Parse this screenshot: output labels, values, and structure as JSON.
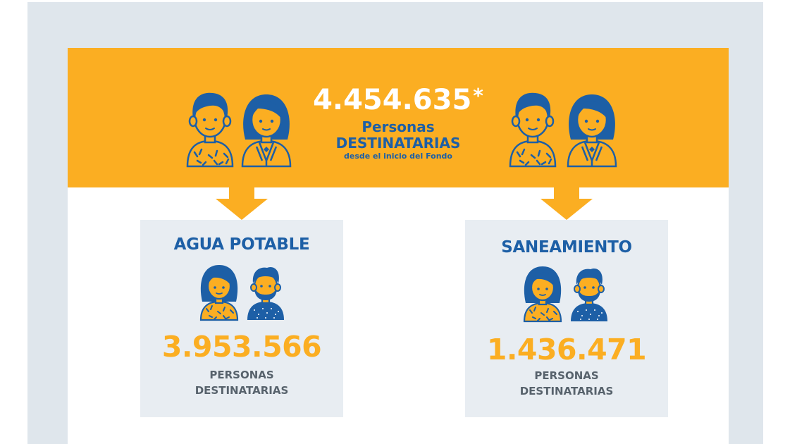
{
  "banner": {
    "total": "4.454.635",
    "asterisk": "*",
    "line1": "Personas",
    "line2": "DESTINATARIAS",
    "line3": "desde el inicio del Fondo"
  },
  "cards": [
    {
      "title": "AGUA POTABLE",
      "number": "3.953.566",
      "caption_line1": "PERSONAS",
      "caption_line2": "DESTINATARIAS"
    },
    {
      "title": "SANEAMIENTO",
      "number": "1.436.471",
      "caption_line1": "PERSONAS",
      "caption_line2": "DESTINATARIAS"
    }
  ],
  "colors": {
    "accent_orange": "#fbae22",
    "brand_blue": "#1d5fa6",
    "caption_gray": "#57626c",
    "frame_gray": "#dfe6ec",
    "card_gray": "#e8edf2"
  },
  "icons": [
    "man-icon",
    "woman-icon",
    "woman-icon",
    "bearded-man-icon"
  ]
}
